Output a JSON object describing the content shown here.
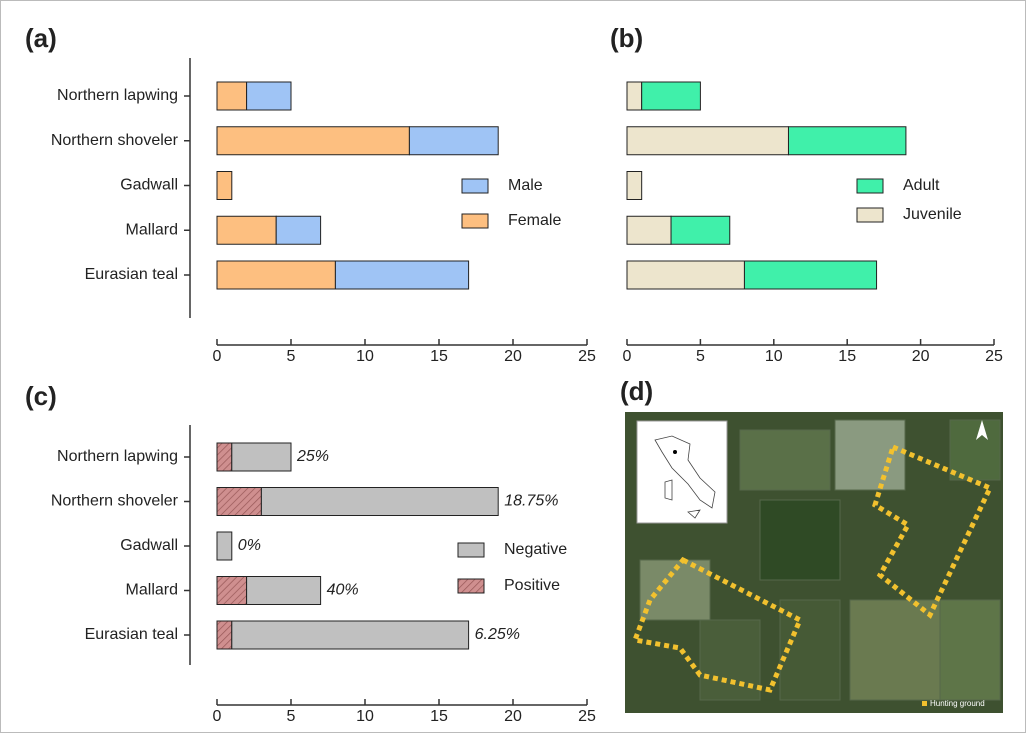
{
  "chart_data": [
    {
      "type": "bar",
      "title": "(a)",
      "orientation": "horizontal",
      "stacked": true,
      "categories": [
        "Northern lapwing",
        "Northern shoveler",
        "Gadwall",
        "Mallard",
        "Eurasian teal"
      ],
      "series": [
        {
          "name": "Female",
          "color": "#fdbf80",
          "values": [
            2,
            13,
            1,
            4,
            8
          ]
        },
        {
          "name": "Male",
          "color": "#9fc4f5",
          "values": [
            3,
            6,
            0,
            3,
            9
          ]
        }
      ],
      "xlim": [
        0,
        25
      ],
      "xticks": [
        0,
        5,
        10,
        15,
        20,
        25
      ]
    },
    {
      "type": "bar",
      "title": "(b)",
      "orientation": "horizontal",
      "stacked": true,
      "categories": [
        "Northern lapwing",
        "Northern shoveler",
        "Gadwall",
        "Mallard",
        "Eurasian teal"
      ],
      "series": [
        {
          "name": "Juvenile",
          "color": "#ede5cd",
          "values": [
            1,
            11,
            1,
            3,
            8
          ]
        },
        {
          "name": "Adult",
          "color": "#40f0aa",
          "values": [
            4,
            8,
            0,
            4,
            9
          ]
        }
      ],
      "xlim": [
        0,
        25
      ],
      "xticks": [
        0,
        5,
        10,
        15,
        20,
        25
      ]
    },
    {
      "type": "bar",
      "title": "(c)",
      "orientation": "horizontal",
      "stacked": true,
      "categories": [
        "Northern lapwing",
        "Northern shoveler",
        "Gadwall",
        "Mallard",
        "Eurasian teal"
      ],
      "series": [
        {
          "name": "Positive",
          "color": "#cf8f8f",
          "hatch": true,
          "values": [
            1,
            3,
            0,
            2,
            1
          ]
        },
        {
          "name": "Negative",
          "color": "#c0c0c0",
          "values": [
            4,
            16,
            1,
            5,
            16
          ]
        }
      ],
      "annotations": [
        "25%",
        "18.75%",
        "0%",
        "40%",
        "6.25%"
      ],
      "xlim": [
        0,
        25
      ],
      "xticks": [
        0,
        5,
        10,
        15,
        20,
        25
      ]
    }
  ],
  "map": {
    "title": "(d)",
    "legend": "Hunting ground"
  }
}
